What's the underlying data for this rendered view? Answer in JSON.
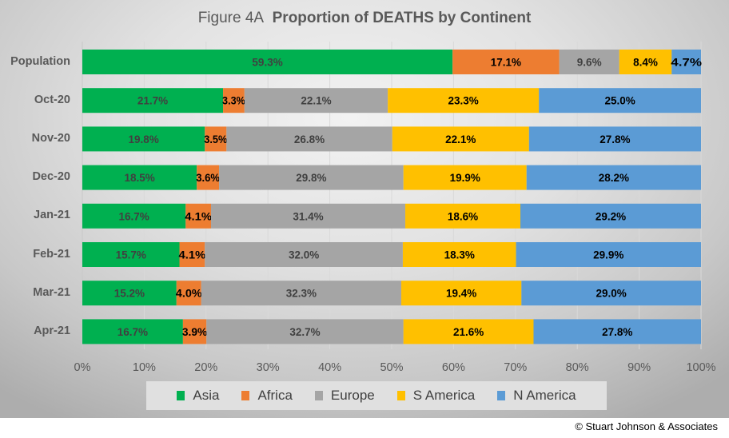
{
  "title": {
    "prefix": "Figure  4A",
    "main": "Proportion of DEATHS by Continent"
  },
  "copyright": "© Stuart Johnson & Associates",
  "chart_data": {
    "type": "bar",
    "orientation": "horizontal",
    "stacked": "percent",
    "title": "Figure 4A Proportion of DEATHS by Continent",
    "xlabel": "",
    "ylabel": "",
    "xlim": [
      0,
      100
    ],
    "x_ticks": [
      "0%",
      "10%",
      "20%",
      "30%",
      "40%",
      "50%",
      "60%",
      "70%",
      "80%",
      "90%",
      "100%"
    ],
    "grid": true,
    "legend_position": "bottom",
    "categories": [
      "Population",
      "Oct-20",
      "Nov-20",
      "Dec-20",
      "Jan-21",
      "Feb-21",
      "Mar-21",
      "Apr-21"
    ],
    "series": [
      {
        "name": "Asia",
        "color": "#00b050",
        "label_color": "#404040",
        "values": [
          59.3,
          21.7,
          19.8,
          18.5,
          16.7,
          15.7,
          15.2,
          16.7
        ]
      },
      {
        "name": "Africa",
        "color": "#ed7d31",
        "label_color": "#000000",
        "values": [
          17.1,
          3.3,
          3.5,
          3.6,
          4.1,
          4.1,
          4.0,
          3.9
        ]
      },
      {
        "name": "Europe",
        "color": "#a5a5a5",
        "label_color": "#404040",
        "values": [
          9.6,
          22.1,
          26.8,
          29.8,
          31.4,
          32.0,
          32.3,
          32.7
        ]
      },
      {
        "name": "S America",
        "color": "#ffc000",
        "label_color": "#000000",
        "values": [
          8.4,
          23.3,
          22.1,
          19.9,
          18.6,
          18.3,
          19.4,
          21.6
        ]
      },
      {
        "name": "N America",
        "color": "#5b9bd5",
        "label_color": "#000000",
        "values": [
          4.7,
          25.0,
          27.8,
          28.2,
          29.2,
          29.9,
          29.0,
          27.8
        ]
      }
    ]
  }
}
